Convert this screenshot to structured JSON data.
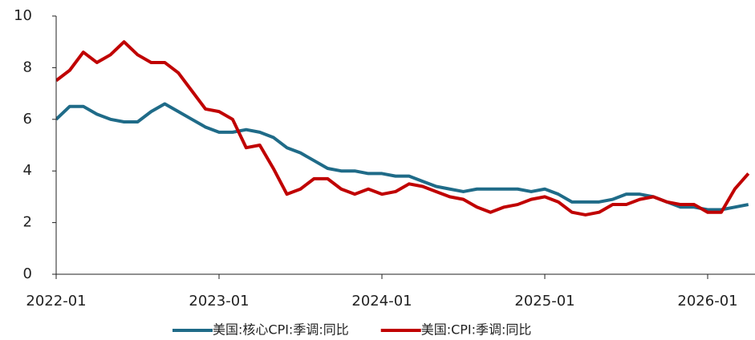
{
  "chart_data": {
    "type": "line",
    "x": [
      "2022-01",
      null,
      null,
      null,
      null,
      null,
      null,
      null,
      null,
      null,
      null,
      null,
      "2023-01",
      null,
      null,
      null,
      null,
      null,
      null,
      null,
      null,
      null,
      null,
      null,
      "2024-01",
      null,
      null,
      null,
      null,
      null,
      null,
      null,
      null,
      null,
      null,
      null,
      "2025-01",
      null,
      null,
      null,
      null,
      null,
      null,
      null,
      null,
      null,
      null,
      null,
      "2026-01",
      null,
      null,
      null
    ],
    "series": [
      {
        "name": "美国:核心CPI:季调:同比",
        "color": "#1f6b88",
        "values": [
          6.0,
          6.5,
          6.5,
          6.2,
          6.0,
          5.9,
          5.9,
          6.3,
          6.6,
          6.3,
          6.0,
          5.7,
          5.5,
          5.5,
          5.6,
          5.5,
          5.3,
          4.9,
          4.7,
          4.4,
          4.1,
          4.0,
          4.0,
          3.9,
          3.9,
          3.8,
          3.8,
          3.6,
          3.4,
          3.3,
          3.2,
          3.3,
          3.3,
          3.3,
          3.3,
          3.2,
          3.3,
          3.1,
          2.8,
          2.8,
          2.8,
          2.9,
          3.1,
          3.1,
          3.0,
          2.8,
          2.6,
          2.6,
          2.5,
          2.5,
          2.6,
          2.7
        ]
      },
      {
        "name": "美国:CPI:季调:同比",
        "color": "#c00000",
        "values": [
          7.5,
          7.9,
          8.6,
          8.2,
          8.5,
          9.0,
          8.5,
          8.2,
          8.2,
          7.8,
          7.1,
          6.4,
          6.3,
          6.0,
          4.9,
          5.0,
          4.1,
          3.1,
          3.3,
          3.7,
          3.7,
          3.3,
          3.1,
          3.3,
          3.1,
          3.2,
          3.5,
          3.4,
          3.2,
          3.0,
          2.9,
          2.6,
          2.4,
          2.6,
          2.7,
          2.9,
          3.0,
          2.8,
          2.4,
          2.3,
          2.4,
          2.7,
          2.7,
          2.9,
          3.0,
          2.8,
          2.7,
          2.7,
          2.4,
          2.4,
          3.3,
          3.9
        ]
      }
    ],
    "ylim": [
      0,
      10
    ],
    "yticks": [
      0,
      2,
      4,
      6,
      8,
      10
    ],
    "legend": "bottom"
  }
}
